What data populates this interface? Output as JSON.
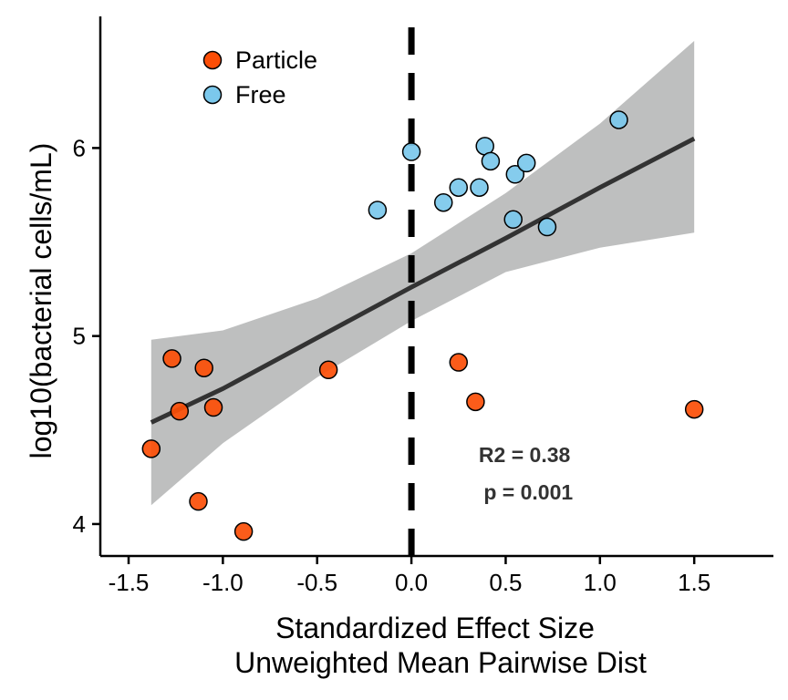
{
  "chart_data": {
    "type": "scatter",
    "xlabel_line1": "Standardized Effect Size",
    "xlabel_line2": "Unweighted Mean Pairwise Dist",
    "ylabel": "log10(bacterial cells/mL)",
    "xlim": [
      -1.65,
      1.92
    ],
    "ylim": [
      3.83,
      6.7
    ],
    "x_ticks": [
      -1.5,
      -1.0,
      -0.5,
      0.0,
      0.5,
      1.0,
      1.5
    ],
    "x_tick_labels": [
      "-1.5",
      "-1.0",
      "-0.5",
      "0.0",
      "0.5",
      "1.0",
      "1.5"
    ],
    "y_ticks": [
      4,
      5,
      6
    ],
    "y_tick_labels": [
      "4",
      "5",
      "6"
    ],
    "grid": false,
    "legend_placement": "top-left",
    "vline_x": 0.0,
    "series": [
      {
        "name": "Particle",
        "color": "#FC4E07",
        "points": [
          {
            "x": -1.38,
            "y": 4.4
          },
          {
            "x": -1.27,
            "y": 4.88
          },
          {
            "x": -1.23,
            "y": 4.6
          },
          {
            "x": -1.13,
            "y": 4.12
          },
          {
            "x": -1.1,
            "y": 4.83
          },
          {
            "x": -1.05,
            "y": 4.62
          },
          {
            "x": -0.89,
            "y": 3.96
          },
          {
            "x": -0.44,
            "y": 4.82
          },
          {
            "x": 0.25,
            "y": 4.86
          },
          {
            "x": 0.34,
            "y": 4.65
          },
          {
            "x": 1.5,
            "y": 4.61
          }
        ]
      },
      {
        "name": "Free",
        "color": "#7BC8EC",
        "points": [
          {
            "x": -0.18,
            "y": 5.67
          },
          {
            "x": 0.0,
            "y": 5.98
          },
          {
            "x": 0.17,
            "y": 5.71
          },
          {
            "x": 0.25,
            "y": 5.79
          },
          {
            "x": 0.36,
            "y": 5.79
          },
          {
            "x": 0.39,
            "y": 6.01
          },
          {
            "x": 0.42,
            "y": 5.93
          },
          {
            "x": 0.54,
            "y": 5.62
          },
          {
            "x": 0.55,
            "y": 5.86
          },
          {
            "x": 0.61,
            "y": 5.92
          },
          {
            "x": 0.72,
            "y": 5.58
          },
          {
            "x": 1.1,
            "y": 6.15
          }
        ]
      }
    ],
    "fit": {
      "color": "#333333",
      "band_color": "#BEBFBF",
      "x": [
        -1.38,
        -1.0,
        -0.5,
        0.0,
        0.5,
        1.0,
        1.5
      ],
      "y": [
        4.54,
        4.72,
        4.99,
        5.26,
        5.52,
        5.79,
        6.05
      ],
      "lower": [
        4.1,
        4.43,
        4.78,
        5.08,
        5.34,
        5.47,
        5.55
      ],
      "upper": [
        4.98,
        5.03,
        5.2,
        5.44,
        5.76,
        6.13,
        6.57
      ]
    },
    "annotations": [
      {
        "text": "R2 = 0.38",
        "x": 0.6,
        "y": 4.33
      },
      {
        "text": "p = 0.001",
        "x": 0.62,
        "y": 4.13
      }
    ]
  }
}
